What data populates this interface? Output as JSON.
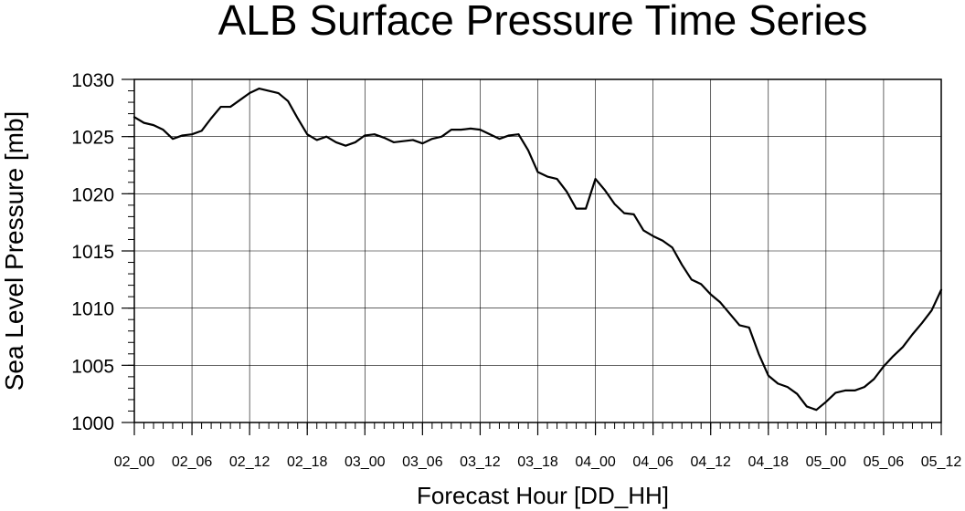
{
  "chart_data": {
    "type": "line",
    "title": "ALB Surface Pressure Time Series",
    "xlabel": "Forecast Hour [DD_HH]",
    "ylabel": "Sea Level Pressure [mb]",
    "ylim": [
      1000,
      1030
    ],
    "xlim": [
      0,
      84
    ],
    "y_ticks": [
      "1000",
      "1005",
      "1010",
      "1015",
      "1020",
      "1025",
      "1030"
    ],
    "x_ticks": [
      {
        "hour": 0,
        "label": "02_00"
      },
      {
        "hour": 6,
        "label": "02_06"
      },
      {
        "hour": 12,
        "label": "02_12"
      },
      {
        "hour": 18,
        "label": "02_18"
      },
      {
        "hour": 24,
        "label": "03_00"
      },
      {
        "hour": 30,
        "label": "03_06"
      },
      {
        "hour": 36,
        "label": "03_12"
      },
      {
        "hour": 42,
        "label": "03_18"
      },
      {
        "hour": 48,
        "label": "04_00"
      },
      {
        "hour": 54,
        "label": "04_06"
      },
      {
        "hour": 60,
        "label": "04_12"
      },
      {
        "hour": 66,
        "label": "04_18"
      },
      {
        "hour": 72,
        "label": "05_00"
      },
      {
        "hour": 78,
        "label": "05_06"
      },
      {
        "hour": 84,
        "label": "05_12"
      }
    ],
    "grid": true,
    "line_color": "#000000",
    "series": [
      {
        "name": "",
        "x": [
          0,
          1,
          2,
          3,
          4,
          5,
          6,
          7,
          8,
          9,
          10,
          11,
          12,
          13,
          14,
          15,
          16,
          17,
          18,
          19,
          20,
          21,
          22,
          23,
          24,
          25,
          26,
          27,
          28,
          29,
          30,
          31,
          32,
          33,
          34,
          35,
          36,
          37,
          38,
          39,
          40,
          41,
          42,
          43,
          44,
          45,
          46,
          47,
          48,
          49,
          50,
          51,
          52,
          53,
          54,
          55,
          56,
          57,
          58,
          59,
          60,
          61,
          62,
          63,
          64,
          65,
          66,
          67,
          68,
          69,
          70,
          71,
          72,
          73,
          74,
          75,
          76,
          77,
          78,
          79,
          80,
          81,
          82,
          83,
          84
        ],
        "values": [
          1026.7,
          1026.2,
          1026.0,
          1025.6,
          1024.8,
          1025.1,
          1025.2,
          1025.5,
          1026.6,
          1027.6,
          1027.6,
          1028.2,
          1028.8,
          1029.2,
          1029.0,
          1028.8,
          1028.1,
          1026.6,
          1025.2,
          1024.7,
          1025.0,
          1024.5,
          1024.2,
          1024.5,
          1025.1,
          1025.2,
          1024.9,
          1024.5,
          1024.6,
          1024.7,
          1024.4,
          1024.8,
          1025.0,
          1025.6,
          1025.6,
          1025.7,
          1025.6,
          1025.2,
          1024.8,
          1025.1,
          1025.2,
          1023.8,
          1021.9,
          1021.5,
          1021.3,
          1020.2,
          1018.7,
          1018.7,
          1021.3,
          1020.3,
          1019.1,
          1018.3,
          1018.2,
          1016.8,
          1016.3,
          1015.9,
          1015.3,
          1013.8,
          1012.5,
          1012.1,
          1011.2,
          1010.5,
          1009.5,
          1008.5,
          1008.3,
          1006.0,
          1004.1,
          1003.4,
          1003.1,
          1002.5,
          1001.4,
          1001.1,
          1001.8,
          1002.6,
          1002.8,
          1002.8,
          1003.1,
          1003.8,
          1004.9,
          1005.8,
          1006.6,
          1007.7,
          1008.7,
          1009.8,
          1011.6
        ]
      }
    ]
  }
}
